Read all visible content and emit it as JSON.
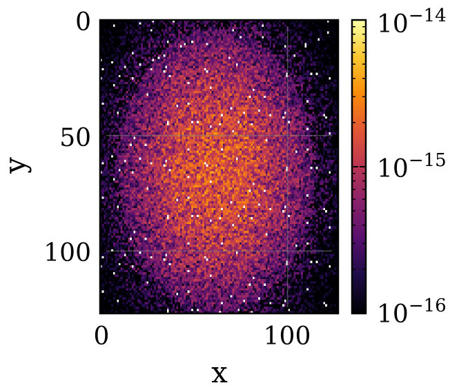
{
  "chart_data": {
    "type": "heatmap",
    "title": "",
    "xlabel": "x",
    "ylabel": "y",
    "x_ticks": [
      "0",
      "100"
    ],
    "y_ticks": [
      "0",
      "50",
      "100"
    ],
    "xlim": [
      0,
      127
    ],
    "ylim": [
      127,
      0
    ],
    "grid": true,
    "colormap": "inferno",
    "colorbar": {
      "scale": "log",
      "range": [
        1e-16,
        1e-14
      ],
      "tick_labels": [
        {
          "base": "10",
          "exp": "−14"
        },
        {
          "base": "10",
          "exp": "−15"
        },
        {
          "base": "10",
          "exp": "−16"
        }
      ],
      "tick_values": [
        1e-14,
        1e-15,
        1e-16
      ]
    },
    "distribution": {
      "shape": "noisy 2D gaussian blob",
      "grid_size": [
        128,
        128
      ],
      "center": [
        62,
        65
      ],
      "peak_value": 2e-15,
      "background_value": 1e-16,
      "features": "sparse isolated white (saturated) pixels scattered across the field"
    },
    "colors": {
      "background": "#000004",
      "low": "#1b0c41",
      "mid": "#781c6d",
      "high": "#ed6925",
      "max": "#fcffa4"
    }
  }
}
